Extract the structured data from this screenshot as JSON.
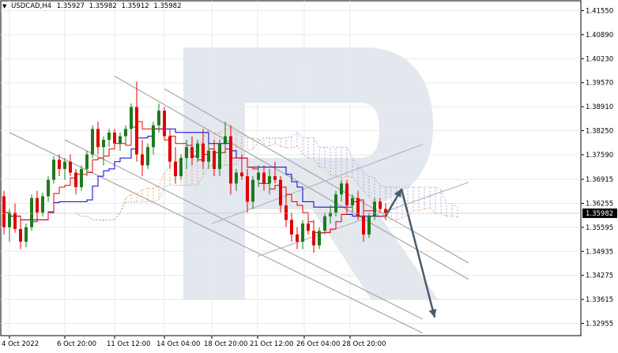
{
  "header": {
    "symbol": "USDCAD,H4",
    "ohlc": [
      "1.35927",
      "1.35982",
      "1.35912",
      "1.35982"
    ]
  },
  "chart_data": {
    "type": "candlestick",
    "instrument": "USDCAD,H4",
    "ylim": [
      1.3262,
      1.4182
    ],
    "y_ticks": [
      "1.41550",
      "1.40890",
      "1.40230",
      "1.39570",
      "1.38910",
      "1.38250",
      "1.37590",
      "1.36915",
      "1.36255",
      "1.35595",
      "1.34935",
      "1.34275",
      "1.33615",
      "1.32955"
    ],
    "x_ticks": [
      "4 Oct 2022",
      "6 Oct 20:00",
      "11 Oct 12:00",
      "14 Oct 04:00",
      "18 Oct 20:00",
      "21 Oct 12:00",
      "26 Oct 04:00",
      "28 Oct 20:00"
    ],
    "current_price": "1.35982",
    "grid": true,
    "candles_note": "approximate OHLC read from the plot",
    "candles": [
      [
        1.3645,
        1.366,
        1.354,
        1.356
      ],
      [
        1.356,
        1.361,
        1.352,
        1.36
      ],
      [
        1.36,
        1.3625,
        1.3545,
        1.3555
      ],
      [
        1.3555,
        1.358,
        1.35,
        1.352
      ],
      [
        1.352,
        1.357,
        1.3505,
        1.356
      ],
      [
        1.356,
        1.365,
        1.355,
        1.364
      ],
      [
        1.364,
        1.366,
        1.358,
        1.36
      ],
      [
        1.36,
        1.3655,
        1.359,
        1.3645
      ],
      [
        1.3645,
        1.37,
        1.363,
        1.369
      ],
      [
        1.369,
        1.3755,
        1.368,
        1.3745
      ],
      [
        1.3745,
        1.376,
        1.37,
        1.372
      ],
      [
        1.372,
        1.375,
        1.369,
        1.374
      ],
      [
        1.374,
        1.376,
        1.37,
        1.371
      ],
      [
        1.371,
        1.372,
        1.365,
        1.367
      ],
      [
        1.367,
        1.373,
        1.366,
        1.372
      ],
      [
        1.372,
        1.377,
        1.37,
        1.376
      ],
      [
        1.376,
        1.384,
        1.375,
        1.383
      ],
      [
        1.383,
        1.385,
        1.376,
        1.378
      ],
      [
        1.378,
        1.381,
        1.373,
        1.38
      ],
      [
        1.38,
        1.383,
        1.378,
        1.382
      ],
      [
        1.382,
        1.383,
        1.378,
        1.379
      ],
      [
        1.379,
        1.382,
        1.377,
        1.381
      ],
      [
        1.381,
        1.384,
        1.379,
        1.383
      ],
      [
        1.383,
        1.39,
        1.382,
        1.389
      ],
      [
        1.389,
        1.396,
        1.374,
        1.376
      ],
      [
        1.376,
        1.38,
        1.37,
        1.373
      ],
      [
        1.373,
        1.379,
        1.372,
        1.378
      ],
      [
        1.378,
        1.385,
        1.376,
        1.384
      ],
      [
        1.384,
        1.39,
        1.382,
        1.388
      ],
      [
        1.388,
        1.389,
        1.38,
        1.381
      ],
      [
        1.381,
        1.383,
        1.372,
        1.374
      ],
      [
        1.374,
        1.378,
        1.368,
        1.37
      ],
      [
        1.37,
        1.376,
        1.369,
        1.375
      ],
      [
        1.375,
        1.38,
        1.372,
        1.378
      ],
      [
        1.378,
        1.381,
        1.373,
        1.375
      ],
      [
        1.375,
        1.38,
        1.374,
        1.379
      ],
      [
        1.379,
        1.383,
        1.372,
        1.374
      ],
      [
        1.374,
        1.379,
        1.372,
        1.377
      ],
      [
        1.377,
        1.38,
        1.37,
        1.372
      ],
      [
        1.372,
        1.38,
        1.37,
        1.379
      ],
      [
        1.379,
        1.385,
        1.377,
        1.381
      ],
      [
        1.381,
        1.384,
        1.365,
        1.368
      ],
      [
        1.368,
        1.372,
        1.366,
        1.371
      ],
      [
        1.371,
        1.376,
        1.369,
        1.37
      ],
      [
        1.37,
        1.372,
        1.36,
        1.363
      ],
      [
        1.363,
        1.37,
        1.361,
        1.369
      ],
      [
        1.369,
        1.373,
        1.367,
        1.371
      ],
      [
        1.371,
        1.373,
        1.366,
        1.368
      ],
      [
        1.368,
        1.372,
        1.365,
        1.37
      ],
      [
        1.37,
        1.374,
        1.368,
        1.369
      ],
      [
        1.369,
        1.37,
        1.36,
        1.362
      ],
      [
        1.362,
        1.365,
        1.356,
        1.358
      ],
      [
        1.358,
        1.36,
        1.352,
        1.354
      ],
      [
        1.354,
        1.356,
        1.35,
        1.352
      ],
      [
        1.352,
        1.358,
        1.35,
        1.357
      ],
      [
        1.357,
        1.36,
        1.354,
        1.355
      ],
      [
        1.355,
        1.358,
        1.349,
        1.351
      ],
      [
        1.351,
        1.356,
        1.35,
        1.355
      ],
      [
        1.355,
        1.36,
        1.354,
        1.359
      ],
      [
        1.359,
        1.362,
        1.357,
        1.36
      ],
      [
        1.36,
        1.366,
        1.359,
        1.365
      ],
      [
        1.365,
        1.369,
        1.363,
        1.368
      ],
      [
        1.368,
        1.369,
        1.36,
        1.362
      ],
      [
        1.362,
        1.365,
        1.36,
        1.364
      ],
      [
        1.364,
        1.366,
        1.358,
        1.359
      ],
      [
        1.359,
        1.361,
        1.352,
        1.354
      ],
      [
        1.354,
        1.36,
        1.353,
        1.359
      ],
      [
        1.359,
        1.364,
        1.358,
        1.363
      ],
      [
        1.363,
        1.364,
        1.36,
        1.361
      ],
      [
        1.361,
        1.3625,
        1.359,
        1.3598
      ]
    ],
    "trend_lines": [
      {
        "from": [
          "4 Oct 2022",
          1.382
        ],
        "to": [
          "26 Oct 04:00",
          1.344
        ],
        "color": "#a8a8a8"
      },
      {
        "from": [
          "6 Oct 20:00",
          1.38
        ],
        "to": [
          "26 Oct 04:00",
          1.346
        ],
        "color": "#a8a8a8"
      },
      {
        "from": [
          "11 Oct 12:00",
          1.3975
        ],
        "to": [
          "28 Oct 20:00",
          1.359
        ],
        "color": "#a8a8a8"
      },
      {
        "from": [
          "14 Oct 04:00",
          1.394
        ],
        "to": [
          "28 Oct 20:00",
          1.361
        ],
        "color": "#a8a8a8"
      },
      {
        "from": [
          "18 Oct 20:00",
          1.357
        ],
        "to": [
          "26 Oct 04:00",
          1.372
        ],
        "color": "#b8b8b8"
      },
      {
        "from": [
          "21 Oct 12:00",
          1.348
        ],
        "to": [
          "28 Oct 20:00",
          1.362
        ],
        "color": "#b8b8b8"
      }
    ],
    "forecast_arrows": [
      {
        "from": 1.359,
        "to": 1.3665
      },
      {
        "from": 1.3665,
        "to": 1.3312
      }
    ],
    "colors": {
      "bull_candle": "#1e7a1e",
      "bear_candle": "#e00000",
      "tenkan": "#e00000",
      "kijun": "#0000cc",
      "cloud_up": "#f0a060",
      "cloud_down": "#a8a0d8",
      "grid": "#e8e8e8",
      "arrow": "#4a5b6b",
      "watermark": "#e3e7ee"
    }
  }
}
